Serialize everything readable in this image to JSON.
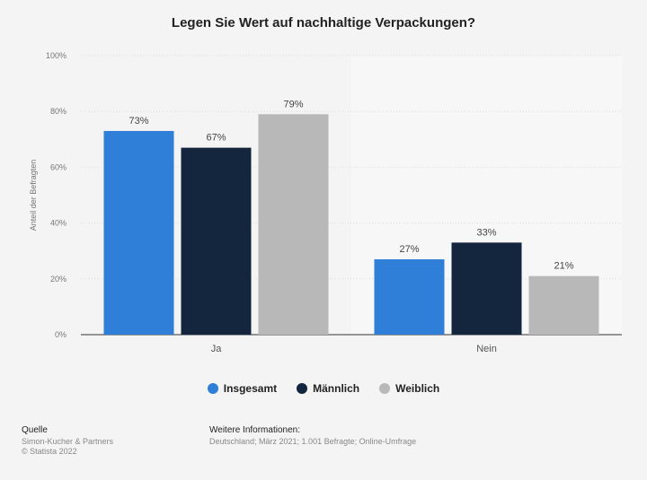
{
  "chart_data": {
    "type": "bar",
    "title": "Legen Sie Wert auf nachhaltige Verpackungen?",
    "ylabel": "Anteil der Befragten",
    "xlabel": "",
    "categories": [
      "Ja",
      "Nein"
    ],
    "series": [
      {
        "name": "Insgesamt",
        "values": [
          73,
          27
        ],
        "color": "#2f7ed8"
      },
      {
        "name": "Männlich",
        "values": [
          67,
          33
        ],
        "color": "#13263d"
      },
      {
        "name": "Weiblich",
        "values": [
          79,
          21
        ],
        "color": "#b8b8b8"
      }
    ],
    "value_labels": [
      [
        "73%",
        "27%"
      ],
      [
        "67%",
        "33%"
      ],
      [
        "79%",
        "21%"
      ]
    ],
    "ylim": [
      0,
      100
    ],
    "yticks": [
      "0%",
      "20%",
      "40%",
      "60%",
      "80%",
      "100%"
    ],
    "grid": true,
    "legend_position": "bottom"
  },
  "footer": {
    "source_heading": "Quelle",
    "source_line1": "Simon-Kucher & Partners",
    "source_line2": "© Statista 2022",
    "info_heading": "Weitere Informationen:",
    "info_text": "Deutschland; März 2021; 1.001 Befragte; Online-Umfrage"
  }
}
